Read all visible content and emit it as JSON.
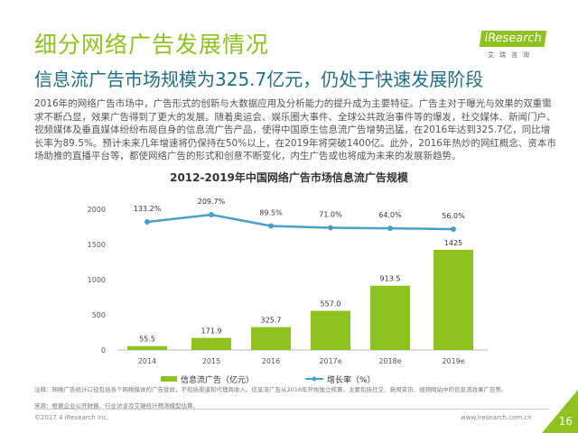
{
  "slide": {
    "title": "细分网络广告发展情况",
    "subtitle": "信息流广告市场规模为325.7亿元，仍处于快速发展阶段",
    "body": "2016年的网络广告市场中，广告形式的创新与大数据应用及分析能力的提升成为主要特征。广告主对于曝光与效果的双重需求不断凸显，效果广告得到了更大的发展。随着奥运会、娱乐圈大事件、全球公共政治事件等的爆发，社交媒体、新闻门户、视频媒体及垂直媒体纷纷布局自身的信息流广告产品，使得中国原生信息流广告增势迅猛，在2016年达到325.7亿，同比增长率为89.5%。预计未来几年增速将仍保持在50%以上，在2019年将突破1400亿。此外，2016年热炒的网红概念、资本市场助推的直播平台等，都使网络广告的形式和创意不断变化，内生广告或也将成为未来的发展新趋势。",
    "logo": "iResearch",
    "logo_cn": "艾瑞咨询",
    "note": "注释：网络广告统计口径包括各个网络媒体的广告营收，不包括渠道和代理商收入。信息流广告从2016年开始独立核算，主要包括社交、新闻资讯、视频网站中的信息流效果广告等。",
    "source": "来源：根据企业公开财报、行业访谈及艾瑞统计预测模型估算。",
    "copyright": "©2017.4 iResearch Inc.",
    "website": "www.iresearch.com.cn",
    "page_number": "16",
    "accent": "#8dc21f"
  },
  "chart_data": {
    "type": "bar+line",
    "title": "2012-2019年中国网络广告市场信息流广告规模",
    "categories": [
      "2014",
      "2015",
      "2016",
      "2017e",
      "2018e",
      "2019e"
    ],
    "ylim": [
      0,
      2000
    ],
    "yticks": [
      "0",
      "500",
      "1000",
      "1500",
      "2000"
    ],
    "grid": false,
    "legend_position": "bottom",
    "series": [
      {
        "name": "信息流广告（亿元）",
        "type": "bar",
        "color": "#8dc21f",
        "values": [
          55.5,
          171.9,
          325.7,
          557.0,
          913.5,
          1425
        ],
        "labels": [
          "55.5",
          "171.9",
          "325.7",
          "557.0",
          "913.5",
          "1425"
        ]
      },
      {
        "name": "增长率（%）",
        "type": "line",
        "color": "#4a9fc8",
        "values": [
          133.2,
          209.7,
          89.5,
          71.0,
          64.0,
          56.0
        ],
        "labels": [
          "133.2%",
          "209.7%",
          "89.5%",
          "71.0%",
          "64.0%",
          "56.0%"
        ]
      }
    ]
  }
}
